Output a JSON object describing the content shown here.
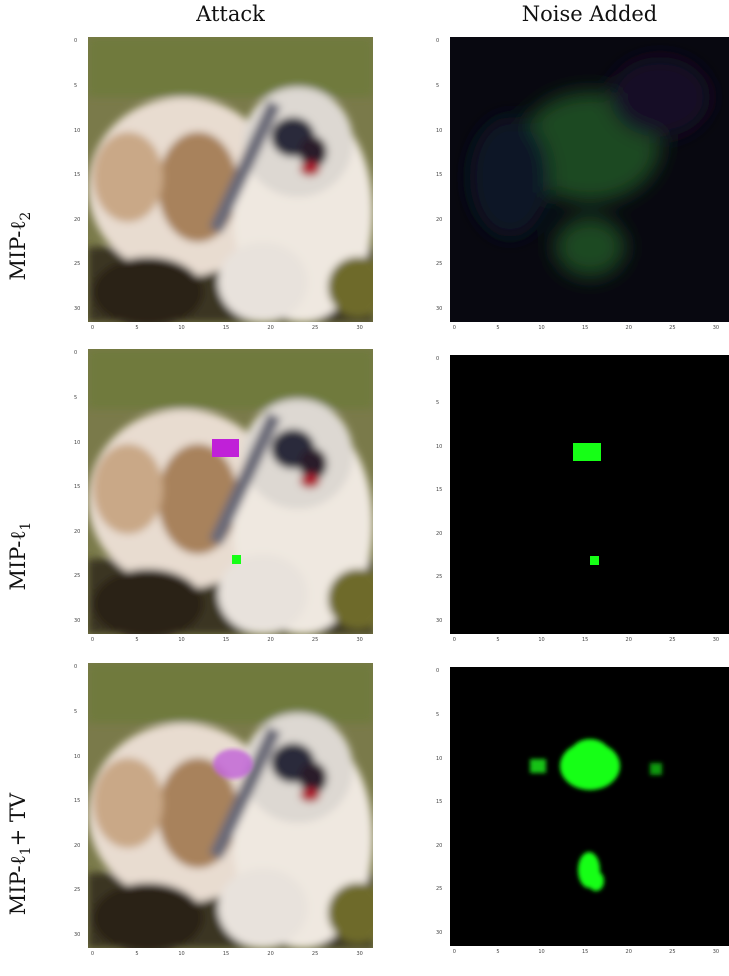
{
  "figure": {
    "columns": [
      "Attack",
      "Noise Added"
    ],
    "rows": [
      {
        "label_prefix": "MIP-",
        "label_sym": "ℓ",
        "label_sub": "2",
        "label_suffix": ""
      },
      {
        "label_prefix": "MIP-",
        "label_sym": "ℓ",
        "label_sub": "1",
        "label_suffix": ""
      },
      {
        "label_prefix": "MIP-",
        "label_sym": "ℓ",
        "label_sub": "1",
        "label_suffix": "+ TV"
      }
    ],
    "tick_labels": [
      "0",
      "5",
      "10",
      "15",
      "20",
      "25",
      "30"
    ],
    "colors": {
      "noise_green": "#16ff16",
      "attack_magenta": "#c020d8",
      "background_black": "#000000"
    }
  }
}
